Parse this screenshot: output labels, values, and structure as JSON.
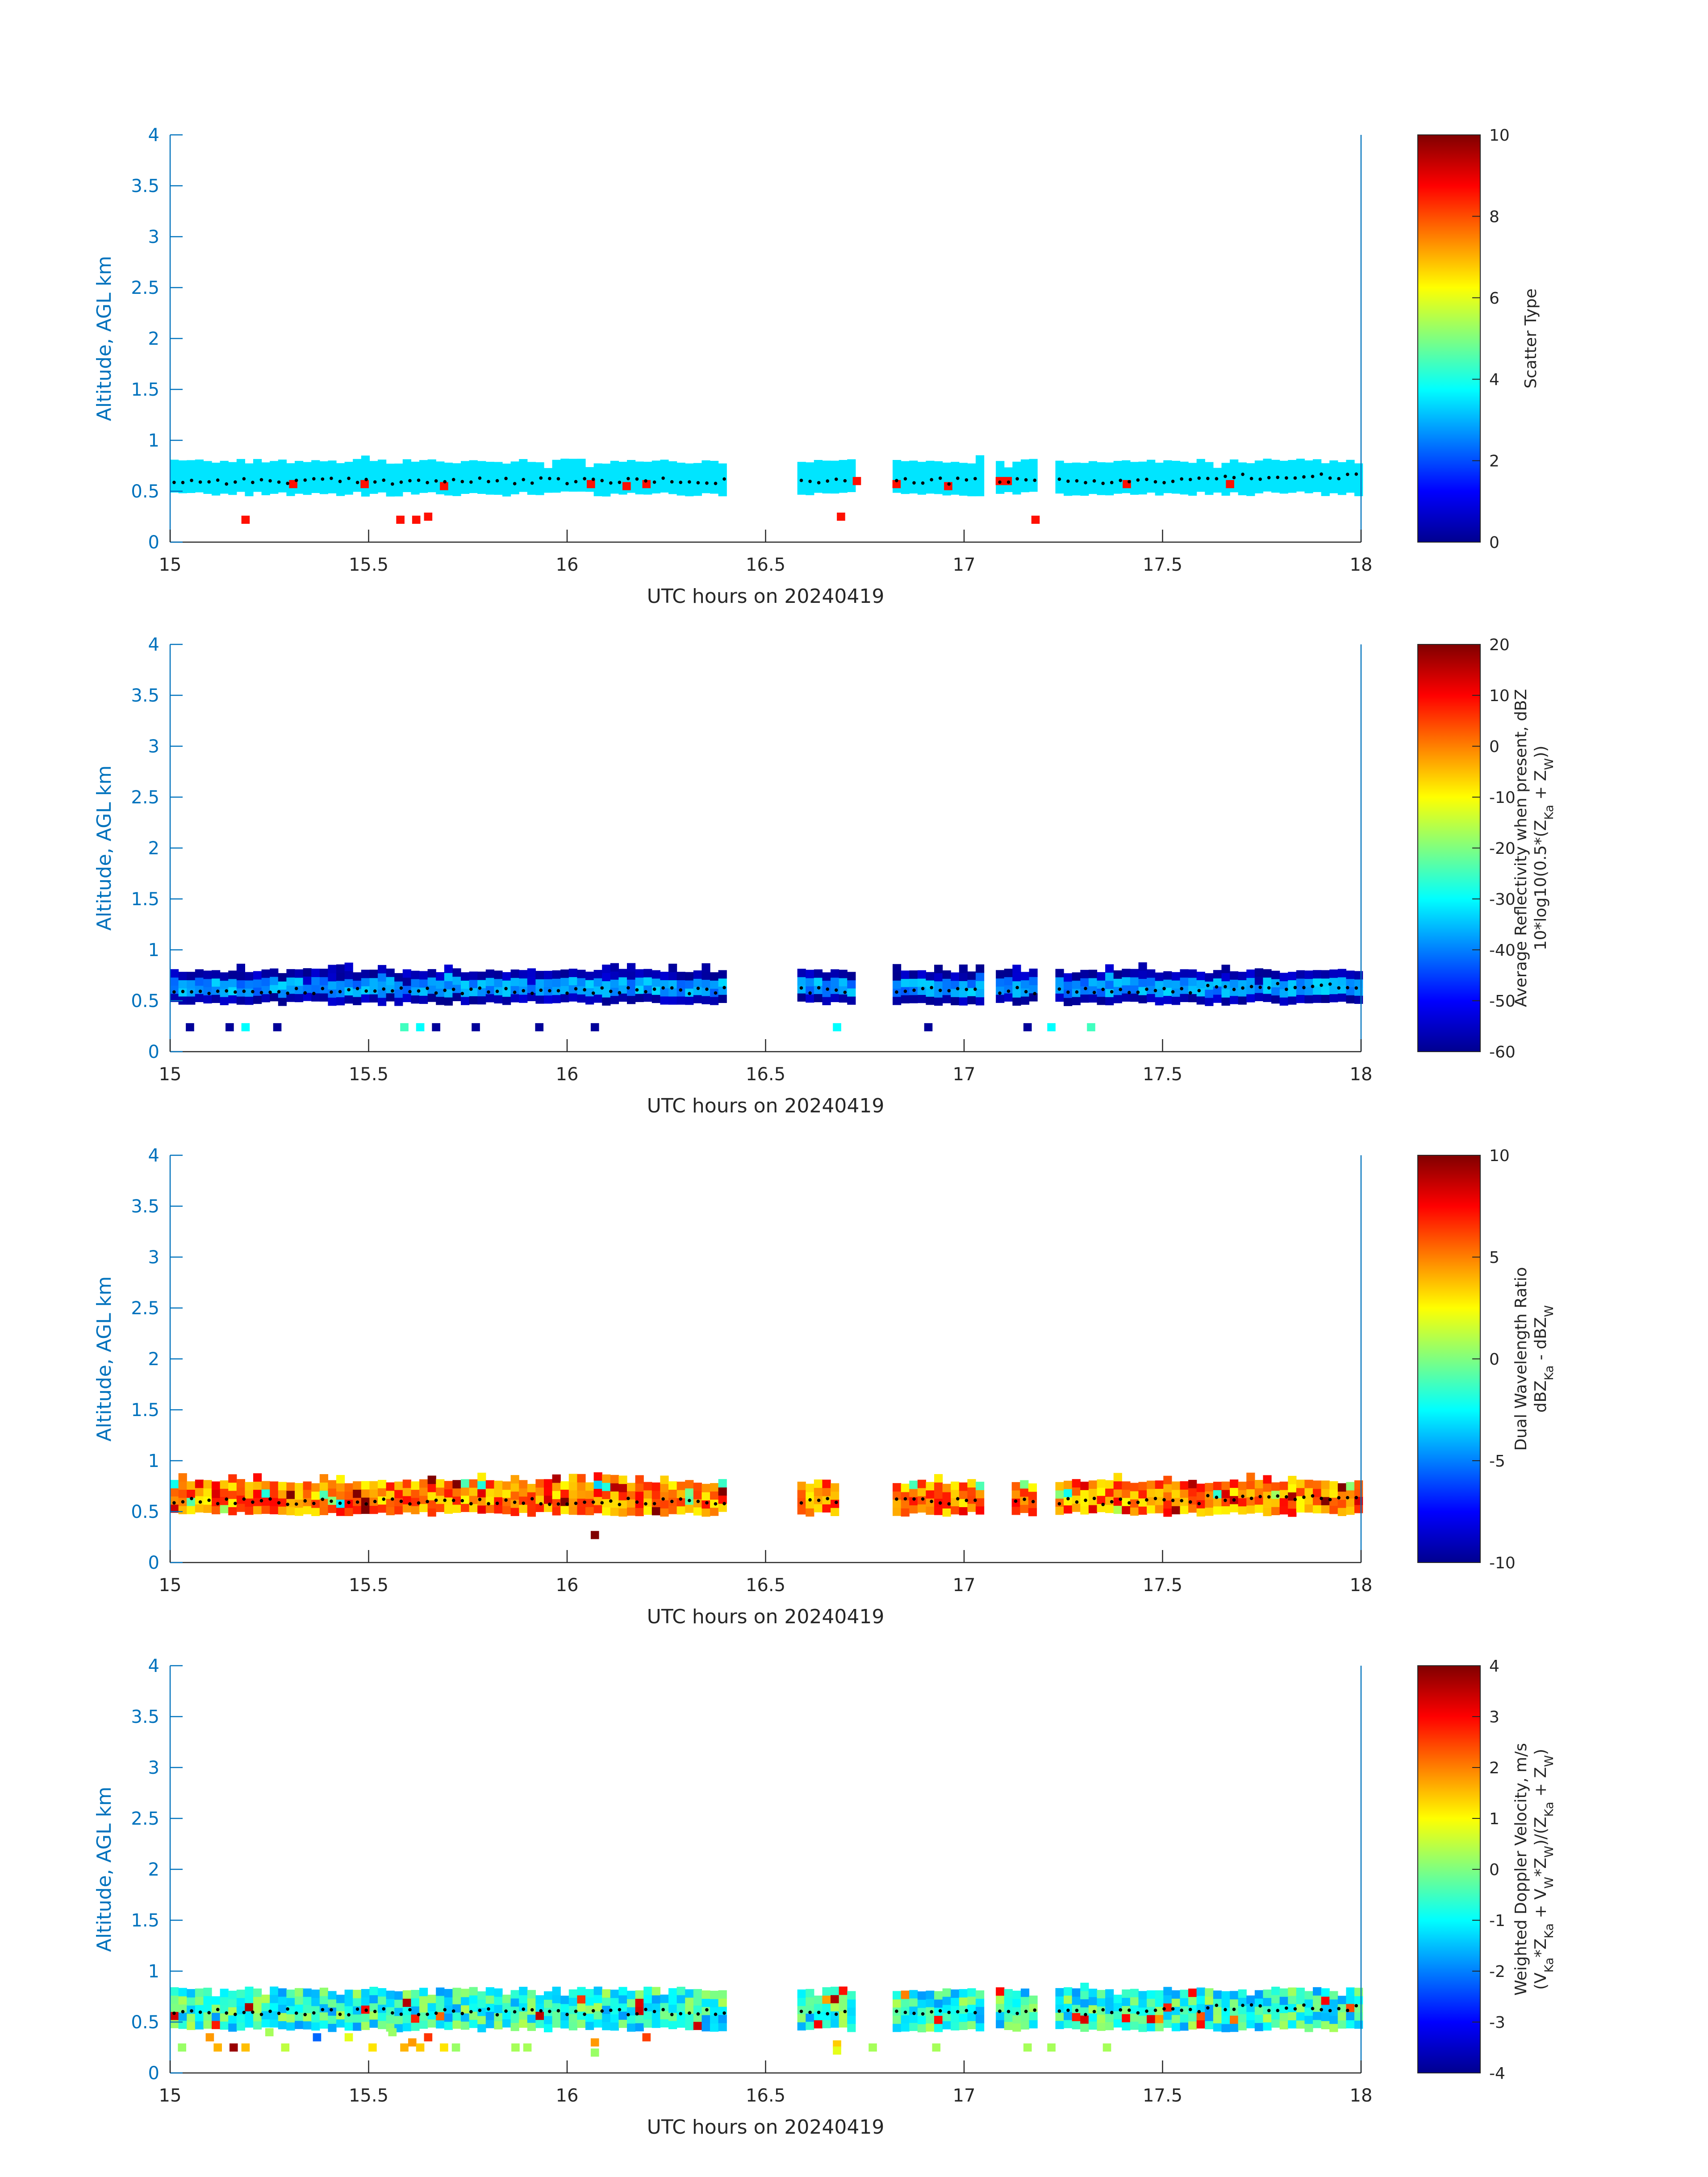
{
  "colors": {
    "axis": "#0072BD",
    "text": "#262626",
    "trace": "#000000"
  },
  "chart_data": [
    {
      "type": "heatmap",
      "xlabel": "UTC hours on 20240419",
      "ylabel": "Altitude, AGL km",
      "xlim": [
        15,
        18
      ],
      "ylim": [
        0,
        4
      ],
      "xticks": [
        "15",
        "15.5",
        "16",
        "16.5",
        "17",
        "17.5",
        "18"
      ],
      "yticks": [
        "0",
        "0.5",
        "1",
        "1.5",
        "2",
        "2.5",
        "3",
        "3.5",
        "4"
      ],
      "colorbar": {
        "label": [
          "Scatter Type"
        ],
        "range": [
          0,
          10
        ],
        "ticks": [
          "0",
          "2",
          "4",
          "6",
          "8",
          "10"
        ],
        "colormap": "jet"
      },
      "layer": {
        "bottom_km": 0.5,
        "top_km": 0.75,
        "dominant_value": 3.5,
        "coverage_hours": [
          [
            15.0,
            16.4
          ],
          [
            16.58,
            16.72
          ],
          [
            16.82,
            17.03
          ],
          [
            17.08,
            17.18
          ],
          [
            17.23,
            18.0
          ]
        ]
      },
      "cell_height_km": 0.08,
      "highlights": [
        {
          "x": 15.19,
          "y": 0.22,
          "v": 8.6
        },
        {
          "x": 15.31,
          "y": 0.57,
          "v": 8.6
        },
        {
          "x": 15.49,
          "y": 0.57,
          "v": 8.6
        },
        {
          "x": 15.58,
          "y": 0.22,
          "v": 8.6
        },
        {
          "x": 15.62,
          "y": 0.22,
          "v": 8.6
        },
        {
          "x": 15.65,
          "y": 0.25,
          "v": 8.6
        },
        {
          "x": 15.69,
          "y": 0.55,
          "v": 8.6
        },
        {
          "x": 16.06,
          "y": 0.57,
          "v": 8.6
        },
        {
          "x": 16.15,
          "y": 0.55,
          "v": 8.6
        },
        {
          "x": 16.2,
          "y": 0.57,
          "v": 8.6
        },
        {
          "x": 16.69,
          "y": 0.25,
          "v": 8.6
        },
        {
          "x": 16.73,
          "y": 0.6,
          "v": 8.6
        },
        {
          "x": 16.83,
          "y": 0.57,
          "v": 8.6
        },
        {
          "x": 16.96,
          "y": 0.55,
          "v": 8.6
        },
        {
          "x": 17.09,
          "y": 0.6,
          "v": 8.6
        },
        {
          "x": 17.11,
          "y": 0.6,
          "v": 8.6
        },
        {
          "x": 17.18,
          "y": 0.22,
          "v": 8.6
        },
        {
          "x": 17.41,
          "y": 0.57,
          "v": 8.6
        },
        {
          "x": 17.67,
          "y": 0.57,
          "v": 8.6
        }
      ],
      "trace_km": 0.6
    },
    {
      "type": "heatmap",
      "xlabel": "UTC hours on 20240419",
      "ylabel": "Altitude, AGL km",
      "xlim": [
        15,
        18
      ],
      "ylim": [
        0,
        4
      ],
      "xticks": [
        "15",
        "15.5",
        "16",
        "16.5",
        "17",
        "17.5",
        "18"
      ],
      "yticks": [
        "0",
        "0.5",
        "1",
        "1.5",
        "2",
        "2.5",
        "3",
        "3.5",
        "4"
      ],
      "colorbar": {
        "label": [
          "Average Reflectivity when present, dBZ",
          "10*log10(0.5*(Z_Ka + Z_W))"
        ],
        "range": [
          -60,
          20
        ],
        "ticks": [
          "-60",
          "-50",
          "-40",
          "-30",
          "-20",
          "-10",
          "0",
          "10",
          "20"
        ],
        "colormap": "jet"
      },
      "layer": {
        "bottom_km": 0.5,
        "top_km": 0.77,
        "edge_value": -56,
        "core_value": -38,
        "coverage_hours": [
          [
            15.0,
            16.4
          ],
          [
            16.58,
            16.72
          ],
          [
            16.82,
            17.03
          ],
          [
            17.08,
            17.18
          ],
          [
            17.23,
            18.0
          ]
        ]
      },
      "cell_height_km": 0.08,
      "highlights": [
        {
          "x": 15.05,
          "y": 0.24,
          "v": -58
        },
        {
          "x": 15.15,
          "y": 0.24,
          "v": -58
        },
        {
          "x": 15.19,
          "y": 0.24,
          "v": -30
        },
        {
          "x": 15.27,
          "y": 0.24,
          "v": -58
        },
        {
          "x": 15.59,
          "y": 0.24,
          "v": -25
        },
        {
          "x": 15.63,
          "y": 0.24,
          "v": -30
        },
        {
          "x": 15.67,
          "y": 0.24,
          "v": -58
        },
        {
          "x": 15.77,
          "y": 0.24,
          "v": -58
        },
        {
          "x": 15.93,
          "y": 0.24,
          "v": -58
        },
        {
          "x": 16.07,
          "y": 0.24,
          "v": -58
        },
        {
          "x": 16.68,
          "y": 0.24,
          "v": -30
        },
        {
          "x": 16.91,
          "y": 0.24,
          "v": -58
        },
        {
          "x": 17.16,
          "y": 0.24,
          "v": -58
        },
        {
          "x": 17.22,
          "y": 0.24,
          "v": -30
        },
        {
          "x": 17.32,
          "y": 0.24,
          "v": -25
        }
      ],
      "trace_km": 0.6
    },
    {
      "type": "heatmap",
      "xlabel": "UTC hours on 20240419",
      "ylabel": "Altitude, AGL km",
      "xlim": [
        15,
        18
      ],
      "ylim": [
        0,
        4
      ],
      "xticks": [
        "15",
        "15.5",
        "16",
        "16.5",
        "17",
        "17.5",
        "18"
      ],
      "yticks": [
        "0",
        "0.5",
        "1",
        "1.5",
        "2",
        "2.5",
        "3",
        "3.5",
        "4"
      ],
      "colorbar": {
        "label": [
          "Dual Wavelength Ratio",
          "dBZ_Ka - dBZ_W"
        ],
        "range": [
          -10,
          10
        ],
        "ticks": [
          "-10",
          "-5",
          "0",
          "5",
          "10"
        ],
        "colormap": "jet"
      },
      "layer": {
        "bottom_km": 0.5,
        "top_km": 0.78,
        "dominant_value": 5,
        "coverage_hours": [
          [
            15.0,
            16.4
          ],
          [
            16.58,
            16.68
          ],
          [
            16.82,
            17.03
          ],
          [
            17.12,
            17.18
          ],
          [
            17.23,
            18.0
          ]
        ]
      },
      "cell_height_km": 0.08,
      "highlights": [
        {
          "x": 16.07,
          "y": 0.27,
          "v": 10
        }
      ],
      "trace_km": 0.6
    },
    {
      "type": "heatmap",
      "xlabel": "UTC hours on 20240419",
      "ylabel": "Altitude, AGL km",
      "xlim": [
        15,
        18
      ],
      "ylim": [
        0,
        4
      ],
      "xticks": [
        "15",
        "15.5",
        "16",
        "16.5",
        "17",
        "17.5",
        "18"
      ],
      "yticks": [
        "0",
        "0.5",
        "1",
        "1.5",
        "2",
        "2.5",
        "3",
        "3.5",
        "4"
      ],
      "colorbar": {
        "label": [
          "Weighted Doppler Velocity, m/s",
          "(V_Ka*Z_Ka + V_W*Z_W)/(Z_Ka + Z_W)"
        ],
        "range": [
          -4,
          4
        ],
        "ticks": [
          "-4",
          "-3",
          "-2",
          "-1",
          "0",
          "1",
          "2",
          "3",
          "4"
        ],
        "colormap": "jet"
      },
      "layer": {
        "bottom_km": 0.45,
        "top_km": 0.78,
        "dominant_value": -0.7,
        "coverage_hours": [
          [
            15.0,
            16.4
          ],
          [
            16.58,
            16.72
          ],
          [
            16.82,
            17.03
          ],
          [
            17.08,
            17.18
          ],
          [
            17.23,
            18.0
          ]
        ]
      },
      "cell_height_km": 0.08,
      "highlights": [
        {
          "x": 15.03,
          "y": 0.25,
          "v": 0.2
        },
        {
          "x": 15.1,
          "y": 0.35,
          "v": 1.8
        },
        {
          "x": 15.12,
          "y": 0.25,
          "v": 1.6
        },
        {
          "x": 15.16,
          "y": 0.25,
          "v": 3.8
        },
        {
          "x": 15.19,
          "y": 0.25,
          "v": 1.5
        },
        {
          "x": 15.25,
          "y": 0.4,
          "v": 0.3
        },
        {
          "x": 15.29,
          "y": 0.25,
          "v": 0.5
        },
        {
          "x": 15.37,
          "y": 0.35,
          "v": -2.2
        },
        {
          "x": 15.45,
          "y": 0.35,
          "v": 0.8
        },
        {
          "x": 15.51,
          "y": 0.25,
          "v": 1.2
        },
        {
          "x": 15.56,
          "y": 0.4,
          "v": 0.2
        },
        {
          "x": 15.59,
          "y": 0.25,
          "v": 1.6
        },
        {
          "x": 15.61,
          "y": 0.3,
          "v": 1.8
        },
        {
          "x": 15.63,
          "y": 0.25,
          "v": 1.4
        },
        {
          "x": 15.65,
          "y": 0.35,
          "v": 2.6
        },
        {
          "x": 15.69,
          "y": 0.25,
          "v": 1.2
        },
        {
          "x": 15.72,
          "y": 0.25,
          "v": 0.2
        },
        {
          "x": 15.87,
          "y": 0.25,
          "v": 0.3
        },
        {
          "x": 15.9,
          "y": 0.25,
          "v": 0.3
        },
        {
          "x": 16.07,
          "y": 0.3,
          "v": 1.8
        },
        {
          "x": 16.07,
          "y": 0.2,
          "v": 0.2
        },
        {
          "x": 16.2,
          "y": 0.35,
          "v": 2.5
        },
        {
          "x": 16.68,
          "y": 0.28,
          "v": 1.4
        },
        {
          "x": 16.68,
          "y": 0.22,
          "v": 0.8
        },
        {
          "x": 16.77,
          "y": 0.25,
          "v": 0.3
        },
        {
          "x": 16.93,
          "y": 0.25,
          "v": 0.3
        },
        {
          "x": 17.16,
          "y": 0.25,
          "v": 0.3
        },
        {
          "x": 17.22,
          "y": 0.25,
          "v": 0.3
        },
        {
          "x": 17.36,
          "y": 0.25,
          "v": 0.3
        }
      ],
      "trace_km": 0.6
    }
  ]
}
